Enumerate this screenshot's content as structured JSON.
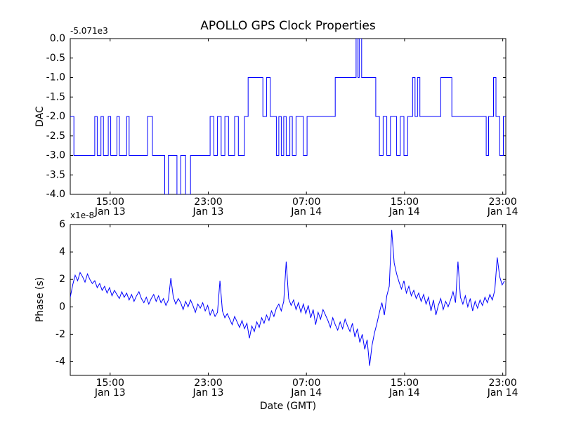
{
  "colors": {
    "line": "#0000ff",
    "background": "#ffffff",
    "axes": "#000000"
  },
  "chart_data": [
    {
      "type": "line",
      "line_style": "step",
      "title": "APOLLO GPS Clock Properties",
      "ylabel": "DAC",
      "offset_text": "-5.071e3",
      "line_color": "#0000ff",
      "xlim": [
        0,
        35.5
      ],
      "ylim": [
        -4,
        0
      ],
      "grid": false,
      "legend": "none",
      "yticks": [
        {
          "v": 0.0,
          "label": "0.0"
        },
        {
          "v": -0.5,
          "label": "-0.5"
        },
        {
          "v": -1.0,
          "label": "-1.0"
        },
        {
          "v": -1.5,
          "label": "-1.5"
        },
        {
          "v": -2.0,
          "label": "-2.0"
        },
        {
          "v": -2.5,
          "label": "-2.5"
        },
        {
          "v": -3.0,
          "label": "-3.0"
        },
        {
          "v": -3.5,
          "label": "-3.5"
        },
        {
          "v": -4.0,
          "label": "-4.0"
        }
      ],
      "xticks": [
        {
          "v": 3.25,
          "line1": "15:00",
          "line2": "Jan 13"
        },
        {
          "v": 11.25,
          "line1": "23:00",
          "line2": "Jan 13"
        },
        {
          "v": 19.25,
          "line1": "07:00",
          "line2": "Jan 14"
        },
        {
          "v": 27.25,
          "line1": "15:00",
          "line2": "Jan 14"
        },
        {
          "v": 35.25,
          "line1": "23:00",
          "line2": "Jan 14"
        }
      ],
      "x_unit_hours_from_plot_start": true,
      "x_end": 35.5,
      "steps": [
        [
          0.0,
          -2
        ],
        [
          0.3,
          -3
        ],
        [
          2.0,
          -2
        ],
        [
          2.2,
          -3
        ],
        [
          2.5,
          -2
        ],
        [
          2.7,
          -3
        ],
        [
          3.1,
          -2
        ],
        [
          3.3,
          -3
        ],
        [
          3.8,
          -2
        ],
        [
          4.0,
          -3
        ],
        [
          4.6,
          -2
        ],
        [
          4.8,
          -3
        ],
        [
          6.3,
          -2
        ],
        [
          6.7,
          -3
        ],
        [
          7.7,
          -4
        ],
        [
          8.0,
          -3
        ],
        [
          8.7,
          -4
        ],
        [
          9.0,
          -3
        ],
        [
          9.4,
          -4
        ],
        [
          9.8,
          -3
        ],
        [
          11.4,
          -2
        ],
        [
          11.7,
          -3
        ],
        [
          12.0,
          -2
        ],
        [
          12.3,
          -3
        ],
        [
          12.6,
          -2
        ],
        [
          12.9,
          -3
        ],
        [
          13.4,
          -2
        ],
        [
          13.7,
          -3
        ],
        [
          14.2,
          -2
        ],
        [
          14.5,
          -1
        ],
        [
          15.7,
          -2
        ],
        [
          16.0,
          -1
        ],
        [
          16.3,
          -2
        ],
        [
          16.8,
          -3
        ],
        [
          17.0,
          -2
        ],
        [
          17.2,
          -3
        ],
        [
          17.4,
          -2
        ],
        [
          17.6,
          -3
        ],
        [
          17.9,
          -2
        ],
        [
          18.1,
          -3
        ],
        [
          18.4,
          -2
        ],
        [
          19.0,
          -3
        ],
        [
          19.3,
          -2
        ],
        [
          21.6,
          -1
        ],
        [
          23.3,
          0
        ],
        [
          23.45,
          -1
        ],
        [
          23.55,
          0
        ],
        [
          23.75,
          -1
        ],
        [
          24.9,
          -2
        ],
        [
          25.2,
          -3
        ],
        [
          25.5,
          -2
        ],
        [
          25.8,
          -3
        ],
        [
          26.1,
          -2
        ],
        [
          26.6,
          -3
        ],
        [
          26.9,
          -2
        ],
        [
          27.2,
          -3
        ],
        [
          27.5,
          -2
        ],
        [
          27.9,
          -1
        ],
        [
          28.1,
          -2
        ],
        [
          28.3,
          -1
        ],
        [
          28.5,
          -2
        ],
        [
          30.2,
          -1
        ],
        [
          31.1,
          -2
        ],
        [
          33.9,
          -3
        ],
        [
          34.1,
          -2
        ],
        [
          34.5,
          -1
        ],
        [
          34.7,
          -2
        ],
        [
          35.0,
          -3
        ],
        [
          35.3,
          -2
        ]
      ]
    },
    {
      "type": "line",
      "line_style": "plain",
      "ylabel": "Phase (s)",
      "xlabel": "Date (GMT)",
      "multiplier_text": "x1e-8",
      "line_color": "#0000ff",
      "xlim": [
        0,
        35.5
      ],
      "ylim": [
        -5,
        6
      ],
      "grid": false,
      "legend": "none",
      "yticks": [
        {
          "v": 6,
          "label": "6"
        },
        {
          "v": 4,
          "label": "4"
        },
        {
          "v": 2,
          "label": "2"
        },
        {
          "v": 0,
          "label": "0"
        },
        {
          "v": -2,
          "label": "-2"
        },
        {
          "v": -4,
          "label": "-4"
        }
      ],
      "xticks": [
        {
          "v": 3.25,
          "line1": "15:00",
          "line2": "Jan 13"
        },
        {
          "v": 11.25,
          "line1": "23:00",
          "line2": "Jan 13"
        },
        {
          "v": 19.25,
          "line1": "07:00",
          "line2": "Jan 14"
        },
        {
          "v": 27.25,
          "line1": "15:00",
          "line2": "Jan 14"
        },
        {
          "v": 35.25,
          "line1": "23:00",
          "line2": "Jan 14"
        }
      ],
      "x_start": 0,
      "x_step": 0.2,
      "values_unit": "1e-8 s",
      "values": [
        0.7,
        1.6,
        2.3,
        1.9,
        2.5,
        2.2,
        1.8,
        2.4,
        2.0,
        1.7,
        1.9,
        1.4,
        1.7,
        1.2,
        1.5,
        1.0,
        1.4,
        0.8,
        1.2,
        0.9,
        0.6,
        1.1,
        0.7,
        1.0,
        0.5,
        0.9,
        0.4,
        0.8,
        1.1,
        0.6,
        0.3,
        0.7,
        0.2,
        0.6,
        0.9,
        0.4,
        0.8,
        0.3,
        0.6,
        0.1,
        0.5,
        2.1,
        0.7,
        0.2,
        0.6,
        0.3,
        -0.2,
        0.4,
        0.0,
        0.5,
        0.1,
        -0.4,
        0.2,
        -0.1,
        0.3,
        -0.3,
        0.1,
        -0.6,
        -0.2,
        -0.7,
        -0.4,
        1.9,
        -0.3,
        -0.8,
        -0.5,
        -0.9,
        -1.3,
        -0.7,
        -1.1,
        -1.5,
        -1.0,
        -1.6,
        -1.2,
        -2.3,
        -1.4,
        -1.8,
        -1.1,
        -1.5,
        -0.8,
        -1.2,
        -0.6,
        -1.0,
        -0.3,
        -0.7,
        -0.1,
        0.2,
        -0.3,
        0.4,
        3.3,
        0.6,
        0.1,
        0.5,
        -0.2,
        0.3,
        -0.4,
        0.2,
        -0.5,
        0.1,
        -0.8,
        -0.2,
        -1.3,
        -0.4,
        -0.9,
        -0.2,
        -0.6,
        -1.0,
        -1.5,
        -0.8,
        -1.3,
        -1.7,
        -1.1,
        -1.6,
        -0.9,
        -1.4,
        -1.8,
        -1.2,
        -2.2,
        -1.6,
        -2.6,
        -2.0,
        -3.1,
        -2.4,
        -4.3,
        -2.8,
        -1.9,
        -1.2,
        -0.4,
        0.3,
        -0.6,
        0.8,
        1.5,
        5.6,
        3.2,
        2.4,
        1.8,
        1.3,
        1.9,
        1.0,
        1.5,
        0.8,
        1.2,
        0.6,
        1.0,
        0.4,
        0.9,
        0.2,
        0.7,
        -0.3,
        0.5,
        -0.6,
        0.1,
        0.6,
        -0.2,
        0.4,
        0.0,
        0.5,
        1.1,
        0.3,
        3.3,
        0.7,
        0.2,
        0.8,
        0.0,
        0.6,
        -0.3,
        0.4,
        -0.1,
        0.5,
        0.1,
        0.7,
        0.3,
        0.9,
        0.5,
        1.2,
        3.6,
        2.2,
        1.6,
        1.9
      ]
    }
  ]
}
